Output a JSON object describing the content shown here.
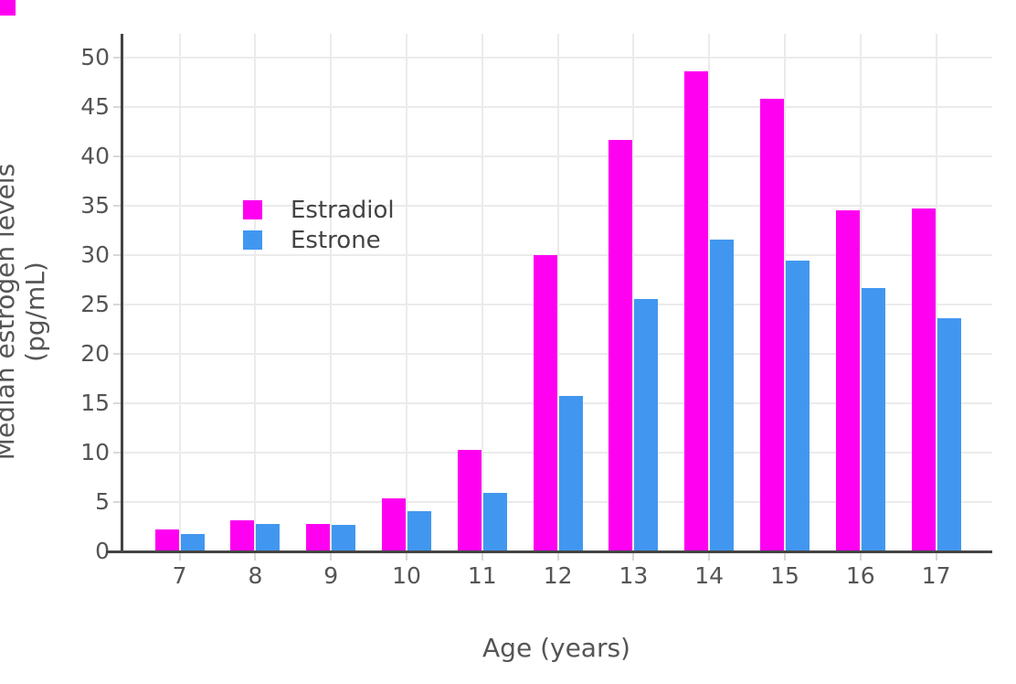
{
  "chart_data": {
    "type": "bar",
    "title": "",
    "xlabel": "Age (years)",
    "ylabel": "Median estrogen levels (pg/mL)",
    "categories": [
      7,
      8,
      9,
      10,
      11,
      12,
      13,
      14,
      15,
      16,
      17
    ],
    "series": [
      {
        "name": "Estradiol",
        "color": "#FF00F0",
        "values": [
          2.2,
          3.1,
          2.7,
          5.3,
          10.2,
          30.0,
          41.6,
          48.6,
          45.8,
          34.5,
          34.7
        ]
      },
      {
        "name": "Estrone",
        "color": "#4197F0",
        "values": [
          1.7,
          2.7,
          2.6,
          4.0,
          5.9,
          15.7,
          25.5,
          31.5,
          29.4,
          26.6,
          23.6
        ]
      }
    ],
    "ylim": [
      0,
      50
    ],
    "yticks": [
      0,
      5,
      10,
      15,
      20,
      25,
      30,
      35,
      40,
      45,
      50
    ],
    "grid": "on",
    "legend_position": "inside-upper-left",
    "bar_mode": "grouped"
  },
  "colors": {
    "background": "#ffffff",
    "gridline": "#ebebeb",
    "tick_mark": "#d8d8d8",
    "axis_line": "#444444",
    "tick_label": "#555555",
    "axis_title": "#555555",
    "legend_text": "#444444",
    "corner_swatch": "#FF00F0"
  }
}
